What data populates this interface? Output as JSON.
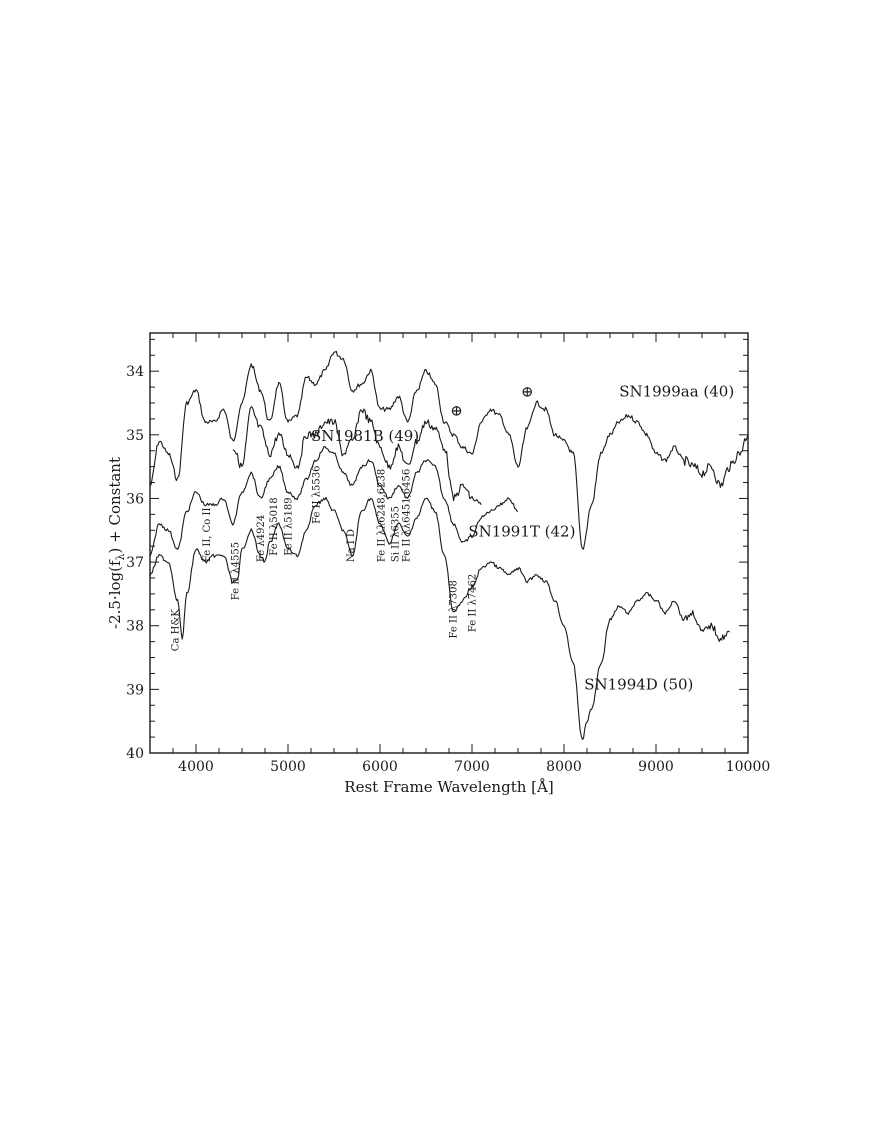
{
  "chart_data": {
    "type": "line",
    "title": "",
    "xlabel": "Rest Frame Wavelength [Å]",
    "ylabel": "-2.5·log(f_λ) + Constant",
    "ylabel_parts": {
      "prefix": "-2.5·log(f",
      "sub": "λ",
      "suffix": ") + Constant"
    },
    "xlim": [
      3500,
      10000
    ],
    "ylim": [
      40,
      33.4
    ],
    "y_inverted": true,
    "x_ticks": [
      4000,
      5000,
      6000,
      7000,
      8000,
      9000,
      10000
    ],
    "x_tick_labels": [
      "4000",
      "5000",
      "6000",
      "7000",
      "8000",
      "9000",
      "10000"
    ],
    "y_ticks": [
      34,
      35,
      36,
      37,
      38,
      39,
      40
    ],
    "y_tick_labels": [
      "34",
      "35",
      "36",
      "37",
      "38",
      "39",
      "40"
    ],
    "grid": false,
    "legend": "none (series labeled inline)",
    "series": [
      {
        "name": "SN1999aa (40)",
        "x": [
          3500,
          3600,
          3700,
          3800,
          3900,
          4000,
          4100,
          4200,
          4300,
          4400,
          4500,
          4600,
          4700,
          4800,
          4900,
          5000,
          5100,
          5200,
          5300,
          5400,
          5500,
          5600,
          5700,
          5800,
          5900,
          6000,
          6100,
          6200,
          6300,
          6400,
          6500,
          6600,
          6700,
          6800,
          6900,
          7000,
          7100,
          7200,
          7300,
          7400,
          7500,
          7600,
          7700,
          7800,
          7900,
          8000,
          8100,
          8200,
          8300,
          8400,
          8500,
          8600,
          8700,
          8800,
          8900,
          9000,
          9100,
          9200,
          9300,
          9400,
          9500,
          9600,
          9700,
          9800,
          9900,
          10000
        ],
        "y": [
          35.8,
          35.1,
          35.3,
          35.7,
          34.5,
          34.3,
          34.8,
          34.8,
          34.6,
          35.1,
          34.5,
          33.9,
          34.3,
          34.8,
          34.2,
          34.8,
          34.7,
          34.1,
          34.2,
          34.0,
          33.7,
          33.8,
          34.3,
          34.2,
          34.0,
          34.6,
          34.6,
          34.4,
          34.8,
          34.3,
          34.0,
          34.2,
          34.8,
          35.0,
          35.2,
          35.3,
          34.8,
          34.6,
          34.7,
          35.0,
          35.5,
          34.9,
          34.5,
          34.6,
          35.0,
          35.1,
          35.3,
          36.8,
          36.1,
          35.3,
          35.0,
          34.8,
          34.7,
          34.8,
          35.0,
          35.3,
          35.4,
          35.2,
          35.4,
          35.5,
          35.6,
          35.5,
          35.8,
          35.5,
          35.3,
          35.0
        ]
      },
      {
        "name": "SN1981B (49)",
        "x": [
          4400,
          4500,
          4600,
          4700,
          4800,
          4900,
          5000,
          5100,
          5200,
          5300,
          5400,
          5500,
          5600,
          5700,
          5800,
          5900,
          6000,
          6100,
          6200,
          6300,
          6400,
          6500,
          6600,
          6700,
          6800,
          6900,
          7000,
          7100
        ],
        "y": [
          35.2,
          35.5,
          34.6,
          34.9,
          35.3,
          35.0,
          35.3,
          35.5,
          35.0,
          35.0,
          34.8,
          34.8,
          35.3,
          35.1,
          34.6,
          34.8,
          35.2,
          35.5,
          35.2,
          35.5,
          35.1,
          34.8,
          34.9,
          35.2,
          36.0,
          35.8,
          36.0,
          36.1
        ]
      },
      {
        "name": "SN1991T (42)",
        "x": [
          3500,
          3600,
          3700,
          3800,
          3900,
          4000,
          4100,
          4200,
          4300,
          4400,
          4500,
          4600,
          4700,
          4800,
          4900,
          5000,
          5100,
          5200,
          5300,
          5400,
          5500,
          5600,
          5700,
          5800,
          5900,
          6000,
          6100,
          6200,
          6300,
          6400,
          6500,
          6600,
          6700,
          6800,
          6900,
          7000,
          7100,
          7200,
          7300,
          7400,
          7500
        ],
        "y": [
          36.9,
          36.4,
          36.5,
          36.8,
          36.2,
          35.9,
          36.1,
          36.1,
          36.0,
          36.4,
          35.9,
          35.6,
          36.0,
          35.7,
          35.5,
          35.9,
          36.0,
          35.7,
          35.4,
          35.2,
          35.3,
          35.6,
          35.8,
          35.5,
          35.4,
          35.8,
          36.0,
          35.8,
          36.0,
          35.6,
          35.4,
          35.5,
          36.0,
          36.4,
          36.7,
          36.6,
          36.3,
          36.2,
          36.1,
          36.0,
          36.2
        ]
      },
      {
        "name": "SN1994D (50)",
        "x": [
          3500,
          3600,
          3700,
          3800,
          3850,
          3900,
          4000,
          4100,
          4200,
          4300,
          4400,
          4450,
          4500,
          4600,
          4700,
          4750,
          4800,
          4900,
          5000,
          5100,
          5200,
          5300,
          5400,
          5500,
          5600,
          5700,
          5800,
          5900,
          6000,
          6100,
          6200,
          6300,
          6400,
          6500,
          6600,
          6700,
          6800,
          6900,
          7000,
          7100,
          7200,
          7300,
          7400,
          7500,
          7600,
          7700,
          7800,
          7900,
          8000,
          8100,
          8200,
          8250,
          8300,
          8400,
          8500,
          8600,
          8700,
          8800,
          8900,
          9000,
          9100,
          9200,
          9300,
          9400,
          9500,
          9600,
          9700,
          9800
        ],
        "y": [
          37.2,
          36.9,
          37.0,
          37.6,
          38.2,
          37.5,
          36.8,
          37.0,
          36.9,
          36.9,
          37.3,
          37.3,
          36.8,
          36.5,
          36.9,
          37.0,
          36.7,
          36.4,
          36.8,
          36.9,
          36.5,
          36.1,
          36.0,
          36.2,
          36.5,
          36.9,
          36.2,
          36.0,
          36.4,
          36.7,
          36.4,
          36.6,
          36.3,
          36.0,
          36.2,
          36.9,
          37.8,
          37.6,
          37.4,
          37.1,
          37.0,
          37.1,
          37.2,
          37.1,
          37.3,
          37.2,
          37.3,
          37.6,
          38.0,
          38.6,
          39.8,
          39.5,
          39.3,
          38.6,
          37.9,
          37.7,
          37.8,
          37.6,
          37.5,
          37.6,
          37.8,
          37.6,
          37.9,
          37.8,
          38.1,
          38.0,
          38.2,
          38.1
        ]
      }
    ],
    "series_labels": [
      {
        "text": "SN1999aa (40)",
        "x": 8600,
        "y": 34.4
      },
      {
        "text": "SN1981B (49)",
        "x": 5250,
        "y": 35.1
      },
      {
        "text": "SN1991T (42)",
        "x": 6960,
        "y": 36.6
      },
      {
        "text": "SN1994D (50)",
        "x": 8220,
        "y": 39.0
      }
    ],
    "annotations": [
      {
        "text": "Ca H&K",
        "x": 3810,
        "y": 38.4
      },
      {
        "text": "Fe II, Co II",
        "x": 4150,
        "y": 37.0
      },
      {
        "text": "Fe II λ4555",
        "x": 4460,
        "y": 37.6
      },
      {
        "text": "Fe λ4924",
        "x": 4740,
        "y": 37.0
      },
      {
        "text": "Fe II λ5018",
        "x": 4880,
        "y": 36.9
      },
      {
        "text": "Fe II λ5189",
        "x": 5040,
        "y": 36.9
      },
      {
        "text": "Fe II λ5536",
        "x": 5340,
        "y": 36.4
      },
      {
        "text": "Na I D",
        "x": 5720,
        "y": 37.0
      },
      {
        "text": "Fe II λλ6248,6238",
        "x": 6050,
        "y": 37.0
      },
      {
        "text": "Si II λ6355",
        "x": 6200,
        "y": 37.0
      },
      {
        "text": "Fe II λλ6451,6456",
        "x": 6320,
        "y": 37.0
      },
      {
        "text": "Fe II λ7308",
        "x": 6830,
        "y": 38.2
      },
      {
        "text": "Fe II λ7462",
        "x": 7040,
        "y": 38.1
      }
    ],
    "telluric_markers": [
      {
        "text": "⊕",
        "x": 6830,
        "y": 34.7
      },
      {
        "text": "⊕",
        "x": 7600,
        "y": 34.4
      }
    ]
  }
}
